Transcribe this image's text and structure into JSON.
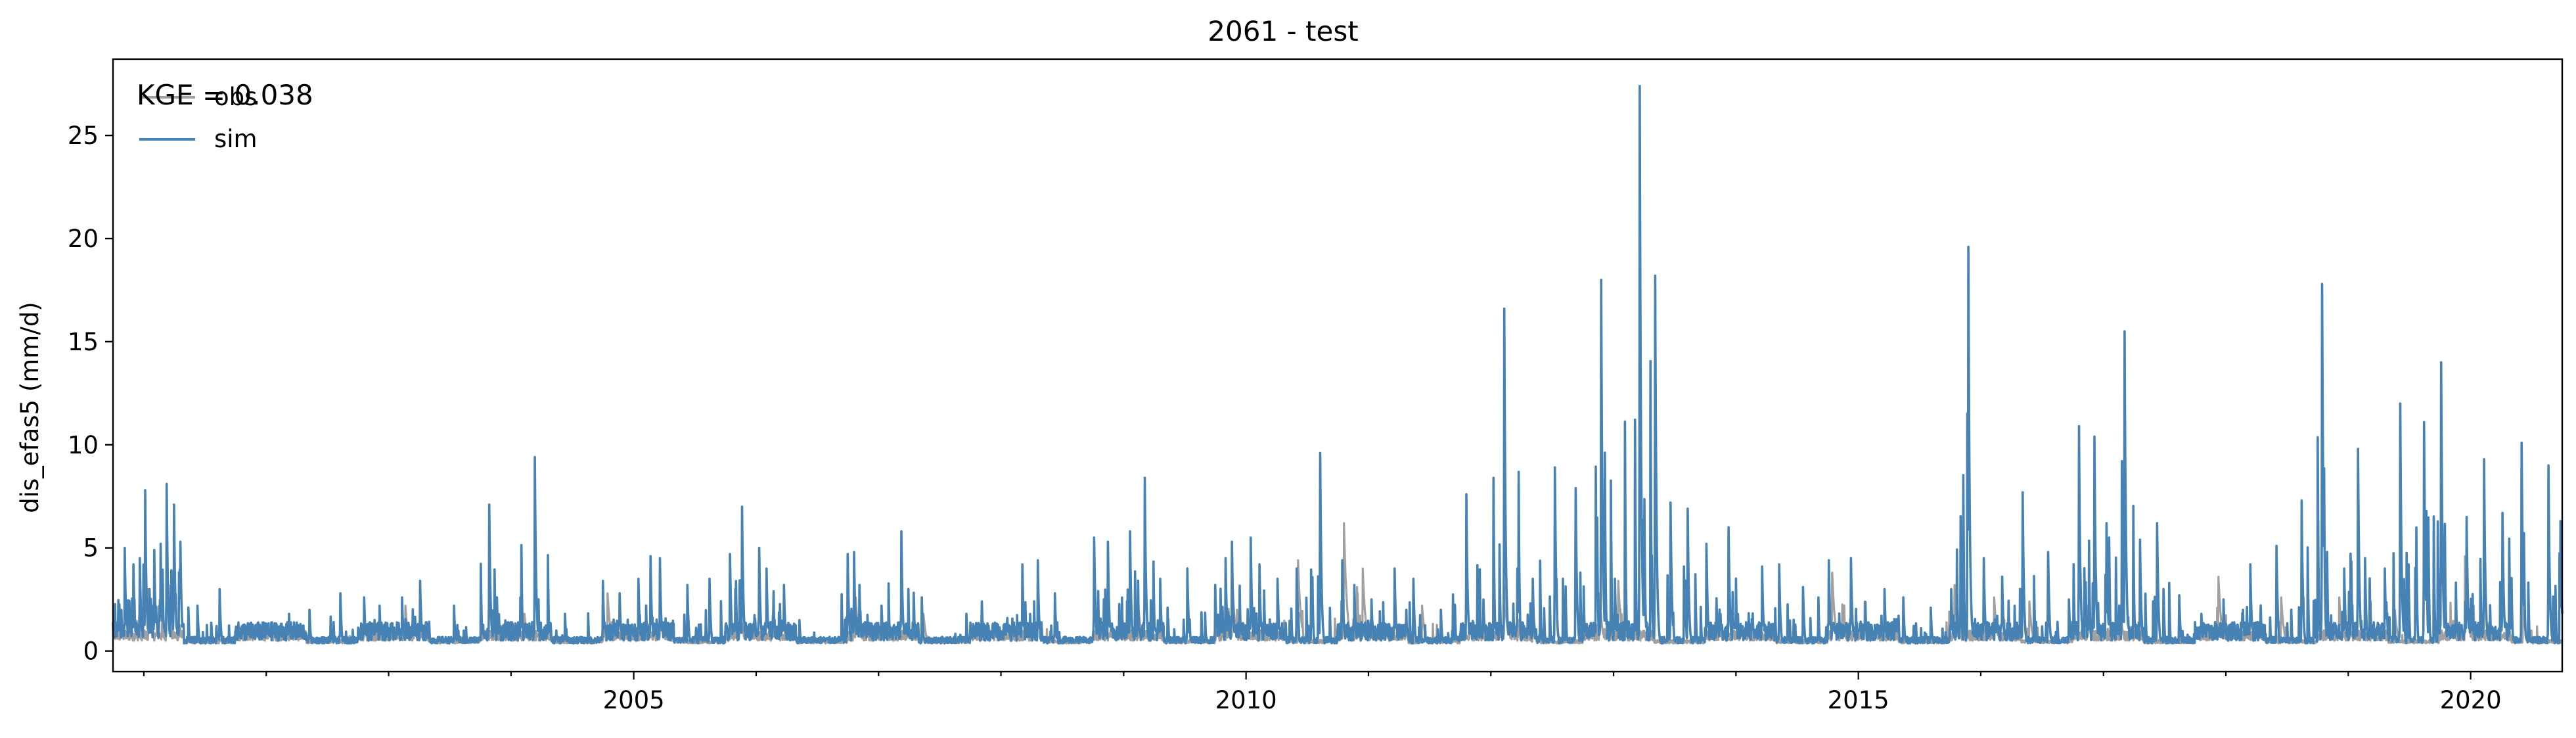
{
  "chart_data": {
    "type": "line",
    "title": "2061 - test",
    "xlabel": "",
    "ylabel": "dis_efas5 (mm/d)",
    "annotation": "KGE = 0.038",
    "xlim": [
      "2000-10-01",
      "2020-09-30"
    ],
    "ylim": [
      -1.0,
      28.7
    ],
    "x_ticks": [
      "2005",
      "2010",
      "2015",
      "2020"
    ],
    "y_ticks": [
      "0",
      "5",
      "10",
      "15",
      "20",
      "25"
    ],
    "grid": false,
    "legend_position": "top-left",
    "series": [
      {
        "name": "obs",
        "color": "#a0a0a0",
        "baseline": 0.3,
        "events": [
          [
            "2001-01-15",
            3.0
          ],
          [
            "2001-03-10",
            3.4
          ],
          [
            "2002-10-20",
            1.4
          ],
          [
            "2003-02-20",
            2.2
          ],
          [
            "2004-02-10",
            1.8
          ],
          [
            "2004-10-15",
            2.8
          ],
          [
            "2005-03-20",
            2.2
          ],
          [
            "2005-11-15",
            2.2
          ],
          [
            "2006-10-25",
            2.6
          ],
          [
            "2007-05-15",
            1.8
          ],
          [
            "2008-04-20",
            2.4
          ],
          [
            "2009-02-15",
            2.0
          ],
          [
            "2009-11-20",
            3.8
          ],
          [
            "2010-06-05",
            4.4
          ],
          [
            "2010-10-20",
            6.2
          ],
          [
            "2010-12-15",
            4.0
          ],
          [
            "2011-06-10",
            2.2
          ],
          [
            "2012-02-10",
            3.2
          ],
          [
            "2012-05-05",
            2.2
          ],
          [
            "2012-11-20",
            2.8
          ],
          [
            "2013-01-15",
            3.4
          ],
          [
            "2013-11-10",
            1.8
          ],
          [
            "2014-10-15",
            3.8
          ],
          [
            "2015-01-20",
            2.4
          ],
          [
            "2015-10-15",
            3.2
          ],
          [
            "2016-02-10",
            2.6
          ],
          [
            "2016-05-25",
            2.4
          ],
          [
            "2016-11-15",
            2.2
          ],
          [
            "2017-02-20",
            2.2
          ],
          [
            "2017-12-10",
            3.6
          ],
          [
            "2018-06-15",
            2.6
          ],
          [
            "2018-12-05",
            2.6
          ],
          [
            "2019-05-20",
            2.0
          ],
          [
            "2019-12-15",
            4.6
          ],
          [
            "2020-06-05",
            2.2
          ]
        ]
      },
      {
        "name": "sim",
        "color": "#4682b4",
        "baseline": 0.3,
        "events": [
          [
            "2000-11-05",
            5.0
          ],
          [
            "2000-12-01",
            4.2
          ],
          [
            "2000-12-20",
            4.5
          ],
          [
            "2001-01-05",
            7.8
          ],
          [
            "2001-02-01",
            4.9
          ],
          [
            "2001-02-20",
            5.2
          ],
          [
            "2001-03-10",
            8.1
          ],
          [
            "2001-04-01",
            7.1
          ],
          [
            "2001-04-20",
            5.3
          ],
          [
            "2001-06-10",
            2.2
          ],
          [
            "2001-08-15",
            3.0
          ],
          [
            "2001-10-20",
            1.2
          ],
          [
            "2002-03-10",
            1.8
          ],
          [
            "2002-05-10",
            2.0
          ],
          [
            "2002-08-10",
            2.8
          ],
          [
            "2002-10-20",
            2.6
          ],
          [
            "2002-12-05",
            2.2
          ],
          [
            "2003-02-10",
            2.6
          ],
          [
            "2003-04-05",
            3.4
          ],
          [
            "2003-07-15",
            2.2
          ],
          [
            "2003-10-28",
            7.1
          ],
          [
            "2003-11-20",
            2.6
          ],
          [
            "2004-03-12",
            9.4
          ],
          [
            "2004-06-10",
            1.8
          ],
          [
            "2004-10-01",
            3.4
          ],
          [
            "2004-11-20",
            2.8
          ],
          [
            "2005-01-15",
            3.5
          ],
          [
            "2005-02-20",
            4.6
          ],
          [
            "2005-03-20",
            4.5
          ],
          [
            "2005-06-10",
            3.2
          ],
          [
            "2005-08-15",
            3.5
          ],
          [
            "2005-10-15",
            4.7
          ],
          [
            "2005-11-20",
            7.0
          ],
          [
            "2006-01-10",
            5.0
          ],
          [
            "2006-02-01",
            4.0
          ],
          [
            "2006-03-25",
            3.2
          ],
          [
            "2006-05-10",
            1.5
          ],
          [
            "2006-10-01",
            4.7
          ],
          [
            "2006-10-20",
            4.8
          ],
          [
            "2006-11-05",
            3.2
          ],
          [
            "2007-01-10",
            2.2
          ],
          [
            "2007-03-10",
            5.8
          ],
          [
            "2007-05-10",
            2.6
          ],
          [
            "2007-09-20",
            1.8
          ],
          [
            "2007-11-05",
            2.4
          ],
          [
            "2008-01-20",
            1.6
          ],
          [
            "2008-03-05",
            4.2
          ],
          [
            "2008-04-20",
            4.4
          ],
          [
            "2008-06-10",
            2.8
          ],
          [
            "2008-10-05",
            5.5
          ],
          [
            "2008-11-15",
            5.3
          ],
          [
            "2009-01-20",
            5.8
          ],
          [
            "2009-03-05",
            8.4
          ],
          [
            "2009-04-20",
            3.5
          ],
          [
            "2009-07-10",
            4.0
          ],
          [
            "2009-10-01",
            3.2
          ],
          [
            "2009-11-01",
            4.5
          ],
          [
            "2009-11-20",
            5.3
          ],
          [
            "2010-01-15",
            5.5
          ],
          [
            "2010-02-10",
            4.2
          ],
          [
            "2010-04-05",
            3.5
          ],
          [
            "2010-06-01",
            4.0
          ],
          [
            "2010-08-10",
            9.6
          ],
          [
            "2010-10-15",
            4.4
          ],
          [
            "2010-11-20",
            3.2
          ],
          [
            "2011-01-10",
            2.5
          ],
          [
            "2011-03-20",
            4.0
          ],
          [
            "2011-05-15",
            3.5
          ],
          [
            "2011-08-05",
            2.0
          ],
          [
            "2011-10-20",
            7.6
          ],
          [
            "2011-12-10",
            2.5
          ],
          [
            "2012-02-10",
            16.6
          ],
          [
            "2012-03-20",
            4.0
          ],
          [
            "2012-05-05",
            3.5
          ],
          [
            "2012-07-10",
            8.9
          ],
          [
            "2012-09-10",
            7.9
          ],
          [
            "2012-11-25",
            18.0
          ],
          [
            "2013-01-05",
            3.5
          ],
          [
            "2013-03-20",
            27.4
          ],
          [
            "2013-05-05",
            18.2
          ],
          [
            "2013-06-20",
            7.2
          ],
          [
            "2013-08-10",
            6.9
          ],
          [
            "2013-10-05",
            5.2
          ],
          [
            "2013-12-10",
            6.0
          ],
          [
            "2014-03-20",
            4.1
          ],
          [
            "2014-05-10",
            4.2
          ],
          [
            "2014-07-20",
            3.1
          ],
          [
            "2014-10-05",
            4.4
          ],
          [
            "2014-12-10",
            4.5
          ],
          [
            "2015-03-20",
            3.0
          ],
          [
            "2015-05-15",
            2.6
          ],
          [
            "2015-08-05",
            2.1
          ],
          [
            "2015-10-05",
            3.0
          ],
          [
            "2015-11-25",
            19.6
          ],
          [
            "2016-01-10",
            4.5
          ],
          [
            "2016-03-05",
            3.6
          ],
          [
            "2016-05-05",
            7.7
          ],
          [
            "2016-07-20",
            4.8
          ],
          [
            "2016-09-20",
            2.5
          ],
          [
            "2016-10-20",
            10.9
          ],
          [
            "2016-12-05",
            10.4
          ],
          [
            "2017-01-10",
            6.2
          ],
          [
            "2017-03-05",
            15.5
          ],
          [
            "2017-04-20",
            5.4
          ],
          [
            "2017-06-10",
            6.2
          ],
          [
            "2017-08-15",
            2.7
          ],
          [
            "2017-10-20",
            1.8
          ],
          [
            "2017-12-25",
            2.5
          ],
          [
            "2018-03-15",
            4.2
          ],
          [
            "2018-06-01",
            5.1
          ],
          [
            "2018-08-15",
            7.3
          ],
          [
            "2018-10-15",
            17.8
          ],
          [
            "2018-12-20",
            4.0
          ],
          [
            "2019-01-30",
            9.8
          ],
          [
            "2019-02-20",
            4.5
          ],
          [
            "2019-04-20",
            4.0
          ],
          [
            "2019-06-05",
            12.0
          ],
          [
            "2019-08-15",
            11.1
          ],
          [
            "2019-10-05",
            14.0
          ],
          [
            "2019-12-20",
            6.5
          ],
          [
            "2020-02-10",
            9.3
          ],
          [
            "2020-04-05",
            6.7
          ],
          [
            "2020-06-01",
            10.1
          ],
          [
            "2020-08-20",
            9.0
          ],
          [
            "2020-09-25",
            6.3
          ]
        ]
      }
    ]
  }
}
